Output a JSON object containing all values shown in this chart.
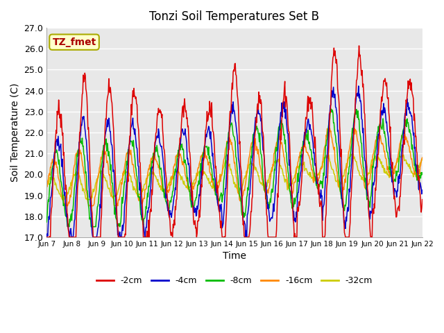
{
  "title": "Tonzi Soil Temperatures Set B",
  "xlabel": "Time",
  "ylabel": "Soil Temperature (C)",
  "ylim": [
    17.0,
    27.0
  ],
  "yticks": [
    17.0,
    18.0,
    19.0,
    20.0,
    21.0,
    22.0,
    23.0,
    24.0,
    25.0,
    26.0,
    27.0
  ],
  "xtick_labels": [
    "Jun 7",
    "Jun 8",
    "Jun 9",
    "Jun 10",
    "Jun 11",
    "Jun 12",
    "Jun 13",
    "Jun 14",
    "Jun 15",
    "Jun 16",
    "Jun 17",
    "Jun 18",
    "Jun 19",
    "Jun 20",
    "Jun 21",
    "Jun 22"
  ],
  "n_days": 15,
  "points_per_day": 48,
  "series_colors": {
    "-2cm": "#dd0000",
    "-4cm": "#0000cc",
    "-8cm": "#00bb00",
    "-16cm": "#ff8800",
    "-32cm": "#cccc00"
  },
  "legend_colors": [
    "#dd0000",
    "#0000cc",
    "#00bb00",
    "#ff8800",
    "#cccc00"
  ],
  "legend_labels": [
    "-2cm",
    "-4cm",
    "-8cm",
    "-16cm",
    "-32cm"
  ],
  "plot_bg_color": "#e8e8e8",
  "annotation_text": "TZ_fmet",
  "annotation_color": "#aa0000",
  "annotation_bg": "#ffffcc",
  "annotation_border": "#aaaa00"
}
